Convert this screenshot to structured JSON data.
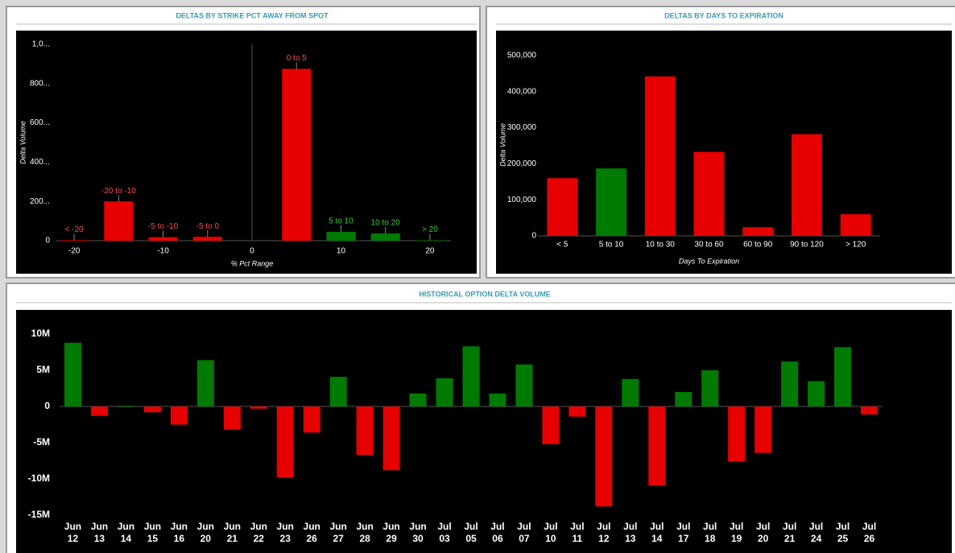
{
  "chart_data": [
    {
      "type": "bar",
      "title": "DELTAS BY STRIKE PCT AWAY FROM SPOT",
      "x": [
        -20,
        -15,
        -10,
        -5,
        5,
        10,
        15,
        20
      ],
      "categories": [
        "< -20",
        "-20 to -10",
        "-5 to -10",
        "-5 to 0",
        "0 to 5",
        "5 to 10",
        "10 to 20",
        "> 20"
      ],
      "values": [
        2,
        200,
        18,
        20,
        875,
        45,
        37,
        2
      ],
      "colors": [
        "#e60000",
        "#e60000",
        "#e60000",
        "#e60000",
        "#e60000",
        "#007a00",
        "#007a00",
        "#007a00"
      ],
      "label_colors": [
        "#ff4d4d",
        "#ff4d4d",
        "#ff4d4d",
        "#ff4d4d",
        "#ff4d4d",
        "#33cc33",
        "#33cc33",
        "#33cc33"
      ],
      "xlim": [
        -22,
        22
      ],
      "xticks": [
        -20,
        -10,
        0,
        10,
        20
      ],
      "ylim": [
        0,
        1000
      ],
      "yticks": [
        0,
        {
          "value": 200,
          "label": "200..."
        },
        {
          "value": 400,
          "label": "400..."
        },
        {
          "value": 600,
          "label": "600..."
        },
        {
          "value": 800,
          "label": "800..."
        },
        {
          "value": 1000,
          "label": "1,0..."
        }
      ],
      "xlabel": "% Pct Range",
      "ylabel": "Delta Volume"
    },
    {
      "type": "bar",
      "title": "DELTAS BY DAYS TO EXPIRATION",
      "categories": [
        "< 5",
        "5 to 10",
        "10 to 30",
        "30 to 60",
        "60 to 90",
        "90 to 120",
        "> 120"
      ],
      "values": [
        160000,
        187000,
        442000,
        233000,
        24000,
        282000,
        60000
      ],
      "colors": [
        "#e60000",
        "#007a00",
        "#e60000",
        "#e60000",
        "#e60000",
        "#e60000",
        "#e60000"
      ],
      "ylim": [
        0,
        500000
      ],
      "yticks": [
        0,
        {
          "value": 100000,
          "label": "100,000"
        },
        {
          "value": 200000,
          "label": "200,000"
        },
        {
          "value": 300000,
          "label": "300,000"
        },
        {
          "value": 400000,
          "label": "400,000"
        },
        {
          "value": 500000,
          "label": "500,000"
        }
      ],
      "xlabel": "Days To Expiration",
      "ylabel": "Delta Volume"
    },
    {
      "type": "bar",
      "title": "HISTORICAL OPTION DELTA VOLUME",
      "categories": [
        "Jun 12",
        "Jun 13",
        "Jun 14",
        "Jun 15",
        "Jun 16",
        "Jun 20",
        "Jun 21",
        "Jun 22",
        "Jun 23",
        "Jun 26",
        "Jun 27",
        "Jun 28",
        "Jun 29",
        "Jun 30",
        "Jul 03",
        "Jul 05",
        "Jul 06",
        "Jul 07",
        "Jul 10",
        "Jul 11",
        "Jul 12",
        "Jul 13",
        "Jul 14",
        "Jul 17",
        "Jul 18",
        "Jul 19",
        "Jul 20",
        "Jul 21",
        "Jul 24",
        "Jul 25",
        "Jul 26"
      ],
      "values": [
        8800000,
        -1300000,
        100000,
        -800000,
        -2500000,
        6400000,
        -3200000,
        -300000,
        -9800000,
        -3600000,
        4100000,
        -6700000,
        -8800000,
        1800000,
        3900000,
        8300000,
        1800000,
        5800000,
        -5200000,
        -1400000,
        -13800000,
        3800000,
        -10900000,
        2000000,
        5000000,
        -7600000,
        -6400000,
        6200000,
        3500000,
        8200000,
        -1100000
      ],
      "positive_color": "#007a00",
      "negative_color": "#e60000",
      "ylim": [
        -15000000,
        10000000
      ],
      "yticks": [
        {
          "value": 10000000,
          "label": "10M"
        },
        {
          "value": 5000000,
          "label": "5M"
        },
        0,
        {
          "value": -5000000,
          "label": "-5M"
        },
        {
          "value": -10000000,
          "label": "-10M"
        },
        {
          "value": -15000000,
          "label": "-15M"
        }
      ]
    }
  ]
}
